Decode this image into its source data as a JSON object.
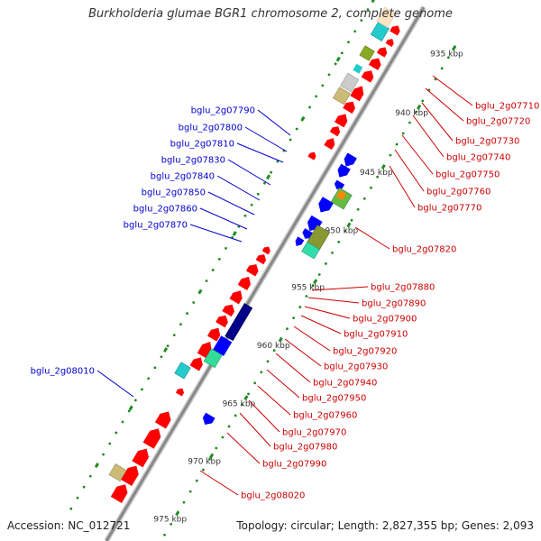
{
  "title": "Burkholderia glumae BGR1 chromosome 2, complete genome",
  "accession_text": "Accession: NC_012721",
  "summary_text": "Topology: circular; Length: 2,827,355 bp; Genes: 2,093",
  "colors": {
    "backbone": "#888888",
    "forward_gene": "#0000ff",
    "reverse_gene": "#ff0000",
    "forward_label": "#0000cc",
    "reverse_label": "#cc0000",
    "tick": "#228b22"
  },
  "ticks": [
    {
      "label": "935 kbp"
    },
    {
      "label": "940 kbp"
    },
    {
      "label": "945 kbp"
    },
    {
      "label": "950 kbp"
    },
    {
      "label": "955 kbp"
    },
    {
      "label": "960 kbp"
    },
    {
      "label": "965 kbp"
    },
    {
      "label": "970 kbp"
    },
    {
      "label": "975 kbp"
    }
  ],
  "forward_labels": [
    "bglu_2g07790",
    "bglu_2g07800",
    "bglu_2g07810",
    "bglu_2g07830",
    "bglu_2g07840",
    "bglu_2g07850",
    "bglu_2g07860",
    "bglu_2g07870",
    "bglu_2g08010"
  ],
  "reverse_labels": [
    "bglu_2g07710",
    "bglu_2g07720",
    "bglu_2g07730",
    "bglu_2g07740",
    "bglu_2g07750",
    "bglu_2g07760",
    "bglu_2g07770",
    "bglu_2g07820",
    "bglu_2g07880",
    "bglu_2g07890",
    "bglu_2g07900",
    "bglu_2g07910",
    "bglu_2g07920",
    "bglu_2g07930",
    "bglu_2g07940",
    "bglu_2g07950",
    "bglu_2g07960",
    "bglu_2g07970",
    "bglu_2g07980",
    "bglu_2g07990",
    "bglu_2g08020"
  ]
}
